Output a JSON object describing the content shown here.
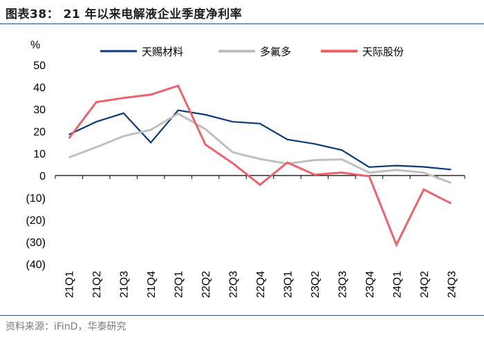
{
  "header": {
    "title": "图表38：  21 年以来电解液企业季度净利率"
  },
  "footer": {
    "source": "资料来源：iFinD，华泰研究"
  },
  "chart_data": {
    "type": "line",
    "title": "21 年以来电解液企业季度净利率",
    "ylabel": "%",
    "xlabel": "",
    "ylim": [
      -40,
      50
    ],
    "yticks": [
      50,
      40,
      30,
      20,
      10,
      0,
      -10,
      -20,
      -30,
      -40
    ],
    "ytick_labels": [
      "50",
      "40",
      "30",
      "20",
      "10",
      "0",
      "(10)",
      "(20)",
      "(30)",
      "(40)"
    ],
    "categories": [
      "21Q1",
      "21Q2",
      "21Q3",
      "21Q4",
      "22Q1",
      "22Q2",
      "22Q3",
      "22Q4",
      "23Q1",
      "23Q2",
      "23Q3",
      "23Q4",
      "24Q1",
      "24Q2",
      "24Q3"
    ],
    "legend_position": "top",
    "series": [
      {
        "name": "天赐材料",
        "color": "#0b3a78",
        "values": [
          18.5,
          24.3,
          28.2,
          14.9,
          29.5,
          27.5,
          24.3,
          23.5,
          16.3,
          14.3,
          11.5,
          3.8,
          4.5,
          3.9,
          2.7
        ]
      },
      {
        "name": "多氟多",
        "color": "#bfbfbf",
        "values": [
          8.2,
          12.8,
          17.8,
          20.7,
          28.0,
          21.0,
          10.5,
          7.5,
          5.3,
          7.0,
          7.3,
          1.3,
          2.5,
          1.3,
          -3.3
        ]
      },
      {
        "name": "天际股份",
        "color": "#f0626b",
        "values": [
          16.8,
          33.2,
          35.1,
          36.6,
          40.6,
          14.0,
          5.6,
          -4.2,
          5.9,
          0.4,
          1.3,
          -0.3,
          -31.3,
          -6.3,
          -12.6
        ]
      }
    ]
  }
}
